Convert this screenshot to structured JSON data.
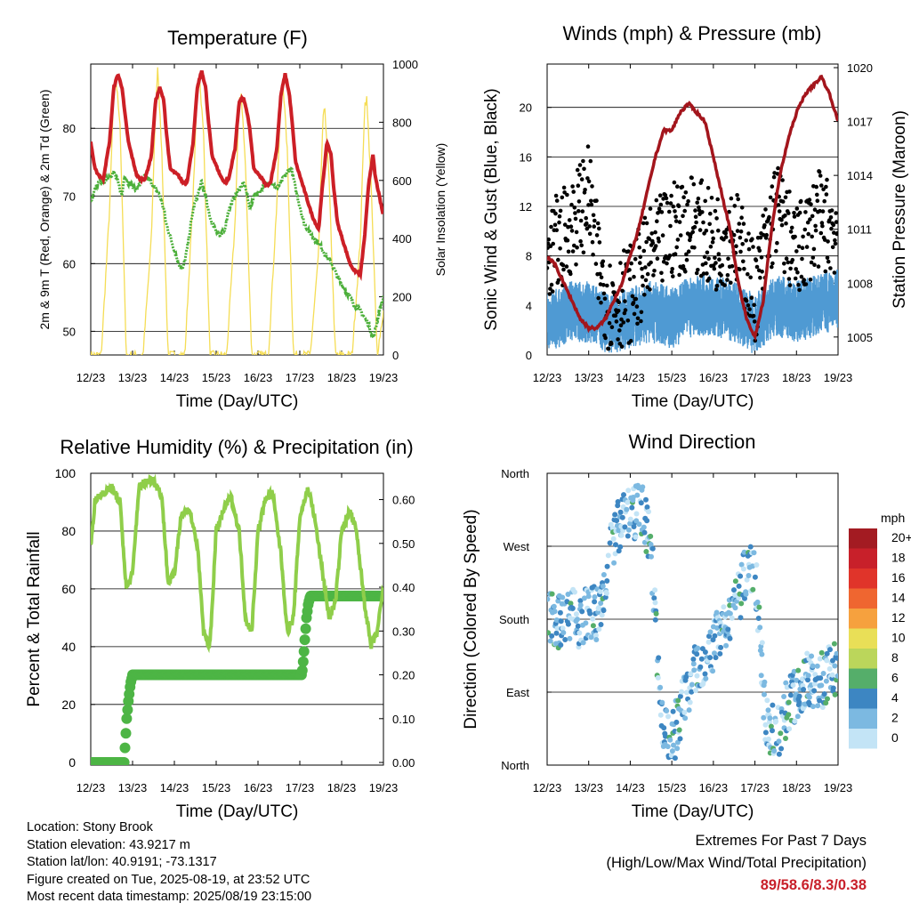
{
  "colors": {
    "temperature": "#cc1f26",
    "dewpoint": "#4caf3a",
    "solar": "#f5dd55",
    "wind": "#4f9ad3",
    "gust": "#000000",
    "pressure": "#a3151c",
    "rh": "#8fce4a",
    "precip": "#4db545",
    "extremes_text": "#c8202a"
  },
  "chart_data": [
    {
      "type": "line",
      "title": "Temperature (F)",
      "xlabel": "Time (Day/UTC)",
      "ylabel": "2m & 9m T (Red, Orange) & 2m Td (Green)",
      "ylabel_right": "Solar Insolation (Yellow)",
      "x_ticks": [
        "12/23",
        "13/23",
        "14/23",
        "15/23",
        "16/23",
        "17/23",
        "18/23",
        "19/23"
      ],
      "ylim": [
        46.5,
        89.5
      ],
      "y_ticks": [
        50,
        60,
        70,
        80
      ],
      "ylim_right": [
        0,
        1000
      ],
      "y_ticks_right": [
        0,
        200,
        400,
        600,
        800,
        1000
      ],
      "grid": "horizontal",
      "series": [
        {
          "x": [
            0,
            0.1,
            0.2,
            0.3,
            0.45,
            0.55,
            0.65,
            0.75,
            0.8,
            0.9,
            1.1,
            1.2,
            1.3,
            1.45,
            1.55,
            1.65,
            1.75,
            1.8,
            1.9,
            2.1,
            2.2,
            2.3,
            2.45,
            2.55,
            2.65,
            2.75,
            2.8,
            2.9,
            3.1,
            3.2,
            3.3,
            3.45,
            3.55,
            3.65,
            3.75,
            3.8,
            3.9,
            4.1,
            4.2,
            4.3,
            4.45,
            4.55,
            4.65,
            4.75,
            4.8,
            4.9,
            5.1,
            5.2,
            5.3,
            5.45,
            5.55,
            5.65,
            5.75,
            5.8,
            5.9,
            6.1,
            6.2,
            6.3,
            6.45,
            6.55,
            6.65,
            6.75,
            6.8,
            6.9,
            7.0
          ],
          "values": [
            78,
            74,
            73,
            72.5,
            78,
            86,
            88,
            86,
            83,
            78,
            73,
            72.5,
            72.5,
            76,
            84,
            86,
            84,
            80,
            74,
            73,
            72,
            72,
            78,
            86,
            88.5,
            86,
            82,
            76,
            73,
            72,
            72.5,
            77,
            84,
            84.5,
            82,
            80,
            74,
            72.5,
            71.5,
            72,
            77,
            85,
            88,
            85,
            82,
            75,
            71,
            69,
            67,
            65,
            72,
            78,
            76,
            72,
            66,
            62,
            60,
            59,
            58.5,
            64,
            72,
            76,
            73,
            70,
            67
          ]
        },
        {
          "x": [
            0,
            0.1,
            0.2,
            0.3,
            0.45,
            0.55,
            0.65,
            0.75,
            0.8,
            0.9,
            1.1,
            1.2,
            1.3,
            1.45,
            1.55,
            1.65,
            1.75,
            1.8,
            1.9,
            2.1,
            2.2,
            2.3,
            2.45,
            2.55,
            2.65,
            2.75,
            2.8,
            2.9,
            3.1,
            3.2,
            3.3,
            3.45,
            3.55,
            3.65,
            3.75,
            3.8,
            3.9,
            4.1,
            4.2,
            4.3,
            4.45,
            4.55,
            4.65,
            4.75,
            4.8,
            4.9,
            5.1,
            5.2,
            5.3,
            5.45,
            5.55,
            5.65,
            5.75,
            5.8,
            5.9,
            6.1,
            6.2,
            6.3,
            6.45,
            6.55,
            6.65,
            6.75,
            6.8,
            6.9,
            7.0
          ],
          "values": [
            69,
            71,
            72,
            72,
            73,
            73.5,
            72,
            70,
            73,
            72,
            71,
            72,
            73,
            72,
            71,
            70,
            68,
            66,
            64,
            60,
            59,
            62,
            68,
            70,
            72,
            70,
            68,
            66,
            64,
            65,
            68,
            70,
            71,
            72,
            70,
            68,
            70,
            71,
            72,
            72,
            71,
            72,
            73,
            74,
            74,
            71,
            66,
            65,
            64,
            63,
            62,
            61,
            60,
            59.5,
            58,
            56,
            55,
            54,
            53,
            52,
            51,
            49,
            50,
            53,
            55
          ]
        },
        {
          "x": [
            0,
            0.25,
            0.45,
            0.55,
            0.6,
            0.7,
            0.85,
            1.25,
            1.45,
            1.55,
            1.6,
            1.7,
            1.85,
            2.25,
            2.45,
            2.55,
            2.6,
            2.7,
            2.85,
            3.25,
            3.45,
            3.55,
            3.6,
            3.7,
            3.85,
            4.25,
            4.45,
            4.55,
            4.6,
            4.7,
            4.85,
            5.25,
            5.45,
            5.55,
            5.6,
            5.7,
            5.85,
            6.25,
            6.45,
            6.55,
            6.6,
            6.7,
            6.85,
            7.0
          ],
          "values": [
            0,
            0,
            500,
            900,
            950,
            800,
            0,
            0,
            400,
            850,
            980,
            700,
            0,
            0,
            550,
            920,
            960,
            750,
            0,
            0,
            450,
            880,
            900,
            650,
            0,
            0,
            520,
            900,
            930,
            700,
            0,
            0,
            350,
            800,
            850,
            600,
            0,
            0,
            400,
            860,
            880,
            600,
            0,
            150
          ],
          "axis": "right"
        }
      ]
    },
    {
      "type": "line",
      "title": "Winds (mph) & Pressure (mb)",
      "xlabel": "Time (Day/UTC)",
      "ylabel": "Sonic Wind & Gust (Blue, Black)",
      "ylabel_right": "Station Pressure (Maroon)",
      "x_ticks": [
        "12/23",
        "13/23",
        "14/23",
        "15/23",
        "16/23",
        "17/23",
        "18/23",
        "19/23"
      ],
      "ylim": [
        0,
        23.5
      ],
      "y_ticks": [
        0,
        4,
        8,
        12,
        16,
        20
      ],
      "ylim_right": [
        1004,
        1020.2
      ],
      "y_ticks_right": [
        1005,
        1008,
        1011,
        1014,
        1017,
        1020
      ],
      "grid": "horizontal",
      "series": [
        {
          "x": [
            0,
            0.5,
            1.0,
            1.25,
            1.5,
            2.0,
            2.5,
            3.0,
            3.5,
            4.0,
            4.5,
            5.0,
            5.5,
            6.0,
            6.5,
            7.0
          ],
          "values": [
            2.5,
            3.5,
            3.5,
            3,
            2.5,
            3,
            3.5,
            3,
            4,
            4,
            3.5,
            2.5,
            4,
            3.5,
            4,
            4.5
          ],
          "band": 2.5
        },
        {
          "x": [
            0,
            0.5,
            1.0,
            1.25,
            1.5,
            2.0,
            2.5,
            3.0,
            3.5,
            4.0,
            4.5,
            5.0,
            5.5,
            6.0,
            6.5,
            7.0
          ],
          "values": [
            8,
            10,
            13,
            7,
            4,
            5,
            8,
            10,
            11,
            9,
            10,
            5,
            12,
            8,
            11,
            10
          ],
          "band": 4
        },
        {
          "x": [
            0,
            0.2,
            0.4,
            0.6,
            0.8,
            1.0,
            1.2,
            1.4,
            1.6,
            1.8,
            2.0,
            2.2,
            2.4,
            2.6,
            2.8,
            3.0,
            3.2,
            3.4,
            3.6,
            3.8,
            4.0,
            4.2,
            4.4,
            4.6,
            4.8,
            5.0,
            5.2,
            5.4,
            5.6,
            5.8,
            6.0,
            6.2,
            6.4,
            6.6,
            6.8,
            7.0
          ],
          "values": [
            1009.5,
            1009,
            1008,
            1007,
            1006,
            1005.5,
            1005.5,
            1006,
            1007,
            1008,
            1009.5,
            1011,
            1013,
            1015,
            1016.5,
            1016.5,
            1017.5,
            1018,
            1017.5,
            1017,
            1015,
            1013,
            1011,
            1008,
            1006,
            1005,
            1007,
            1011,
            1014,
            1016,
            1017.5,
            1018.5,
            1019,
            1019.5,
            1018.5,
            1017
          ]
        }
      ]
    },
    {
      "type": "line",
      "title": "Relative Humidity (%) & Precipitation (in)",
      "xlabel": "Time (Day/UTC)",
      "ylabel": "Percent & Total Rainfall",
      "x_ticks": [
        "12/23",
        "13/23",
        "14/23",
        "15/23",
        "16/23",
        "17/23",
        "18/23",
        "19/23"
      ],
      "ylim": [
        -1,
        100
      ],
      "y_ticks": [
        0,
        20,
        40,
        60,
        80,
        100
      ],
      "ylim_right": [
        -0.006,
        0.66
      ],
      "y_ticks_right": [
        "0.00",
        "0.10",
        "0.20",
        "0.30",
        "0.40",
        "0.50",
        "0.60"
      ],
      "grid": "horizontal",
      "series": [
        {
          "x": [
            0,
            0.1,
            0.25,
            0.5,
            0.7,
            0.85,
            1.0,
            1.15,
            1.3,
            1.5,
            1.7,
            1.85,
            2.0,
            2.15,
            2.35,
            2.55,
            2.7,
            2.85,
            3.0,
            3.2,
            3.35,
            3.55,
            3.7,
            3.85,
            4.0,
            4.2,
            4.35,
            4.55,
            4.7,
            4.85,
            5.0,
            5.2,
            5.35,
            5.55,
            5.7,
            5.85,
            6.0,
            6.2,
            6.35,
            6.55,
            6.7,
            6.85,
            7.0
          ],
          "values": [
            75,
            90,
            93,
            95,
            90,
            60,
            65,
            95,
            97,
            98,
            92,
            62,
            65,
            85,
            88,
            75,
            45,
            40,
            80,
            88,
            92,
            80,
            50,
            45,
            80,
            92,
            93,
            72,
            45,
            50,
            85,
            95,
            85,
            65,
            50,
            55,
            80,
            87,
            80,
            55,
            40,
            45,
            60
          ]
        },
        {
          "x": [
            0,
            0.8,
            0.83,
            0.86,
            0.9,
            0.95,
            1.0,
            1.1,
            5.05,
            5.09,
            5.12,
            5.16,
            5.2,
            5.25,
            5.3,
            7.0
          ],
          "values": [
            0.0,
            0.0,
            0.05,
            0.1,
            0.14,
            0.18,
            0.2,
            0.2,
            0.2,
            0.24,
            0.28,
            0.33,
            0.36,
            0.38,
            0.38,
            0.38
          ],
          "axis": "right"
        }
      ]
    },
    {
      "type": "scatter",
      "title": "Wind Direction",
      "xlabel": "Time (Day/UTC)",
      "ylabel": "Direction (Colored By Speed)",
      "x_ticks": [
        "12/23",
        "13/23",
        "14/23",
        "15/23",
        "16/23",
        "17/23",
        "18/23",
        "19/23"
      ],
      "y_ticks": [
        "North",
        "East",
        "South",
        "West",
        "North"
      ],
      "ylim": [
        0,
        360
      ],
      "grid": "horizontal",
      "series": [
        {
          "x": [
            0,
            0.25,
            0.5,
            0.75,
            1.0,
            1.25,
            1.5,
            1.75,
            2.0,
            2.25,
            2.5,
            2.75,
            3.0,
            3.25,
            3.5,
            3.75,
            4.0,
            4.25,
            4.5,
            4.75,
            5.0,
            5.25,
            5.5,
            5.75,
            6.0,
            6.25,
            6.5,
            6.75,
            7.0
          ],
          "values": [
            180,
            175,
            185,
            180,
            185,
            190,
            260,
            300,
            310,
            320,
            270,
            60,
            30,
            70,
            110,
            130,
            150,
            170,
            190,
            230,
            250,
            60,
            30,
            70,
            90,
            110,
            100,
            110,
            120
          ]
        }
      ],
      "colorbar": {
        "title": "mph",
        "labels": [
          "20+",
          "18",
          "16",
          "14",
          "12",
          "10",
          "8",
          "6",
          "4",
          "2",
          "0"
        ],
        "colors": [
          "#a31b22",
          "#c8202a",
          "#e0342a",
          "#ef6630",
          "#f6a13e",
          "#e9df57",
          "#bbd65b",
          "#55ae6a",
          "#3d86c2",
          "#7cb9e1",
          "#c3e4f6"
        ]
      }
    }
  ],
  "info": {
    "location": "Location: Stony Brook",
    "elevation": "Station elevation: 43.9217 m",
    "latlon": "Station lat/lon: 40.9191; -73.1317",
    "created": "Figure created on Tue, 2025-08-19, at 23:52 UTC",
    "timestamp": "Most recent data timestamp: 2025/08/19 23:15:00"
  },
  "extremes": {
    "title": "Extremes For Past 7 Days",
    "subtitle": "(High/Low/Max Wind/Total Precipitation)",
    "values": "89/58.6/8.3/0.38"
  }
}
